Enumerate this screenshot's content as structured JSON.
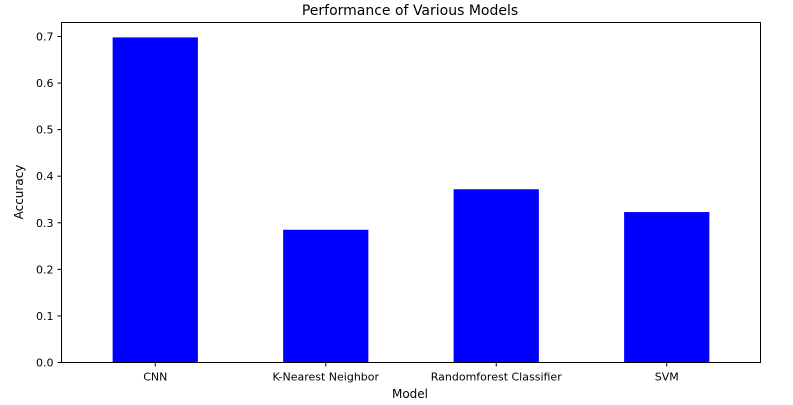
{
  "chart_data": {
    "type": "bar",
    "title": "Performance of Various Models",
    "xlabel": "Model",
    "ylabel": "Accuracy",
    "categories": [
      "CNN",
      "K-Nearest Neighbor",
      "Randomforest Classifier",
      "SVM"
    ],
    "values": [
      0.698,
      0.285,
      0.372,
      0.323
    ],
    "ylim": [
      0,
      0.73
    ],
    "yticks": [
      "0.0",
      "0.1",
      "0.2",
      "0.3",
      "0.4",
      "0.5",
      "0.6",
      "0.7"
    ],
    "bar_color": "#0000ff",
    "grid": false
  }
}
